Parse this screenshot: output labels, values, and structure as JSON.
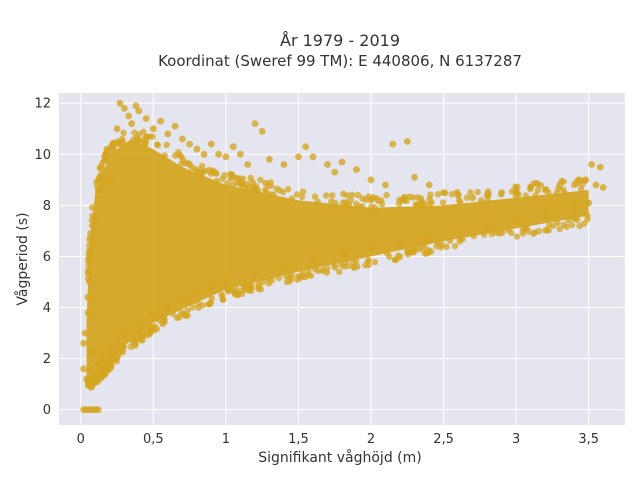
{
  "chart_data": {
    "type": "scatter",
    "title_line1": "År 1979 - 2019",
    "title_line2": "Koordinat (Sweref 99 TM): E 440806, N 6137287",
    "xlabel": "Signifikant våghöjd (m)",
    "ylabel": "Vågperiod (s)",
    "xlim": [
      -0.15,
      3.75
    ],
    "ylim": [
      -0.6,
      12.4
    ],
    "x_ticks": [
      {
        "value": 0,
        "label": "0"
      },
      {
        "value": 0.5,
        "label": "0,5"
      },
      {
        "value": 1,
        "label": "1"
      },
      {
        "value": 1.5,
        "label": "1,5"
      },
      {
        "value": 2,
        "label": "2"
      },
      {
        "value": 2.5,
        "label": "2,5"
      },
      {
        "value": 3,
        "label": "3"
      },
      {
        "value": 3.5,
        "label": "3,5"
      }
    ],
    "y_ticks": [
      {
        "value": 0,
        "label": "0"
      },
      {
        "value": 2,
        "label": "2"
      },
      {
        "value": 4,
        "label": "4"
      },
      {
        "value": 6,
        "label": "6"
      },
      {
        "value": 8,
        "label": "8"
      },
      {
        "value": 10,
        "label": "10"
      },
      {
        "value": 12,
        "label": "12"
      }
    ],
    "grid": true,
    "marker_color": "#d4a520",
    "background_color": "#e5e5ef",
    "points": [
      [
        0.02,
        0.0
      ],
      [
        0.04,
        0.0
      ],
      [
        0.06,
        0.0
      ],
      [
        0.08,
        0.0
      ],
      [
        0.1,
        0.0
      ],
      [
        0.12,
        0.0
      ],
      [
        0.02,
        2.6
      ],
      [
        0.03,
        3.0
      ],
      [
        0.02,
        1.6
      ],
      [
        0.04,
        1.2
      ],
      [
        0.05,
        3.8
      ],
      [
        0.05,
        4.4
      ],
      [
        0.06,
        5.0
      ],
      [
        0.06,
        1.5
      ],
      [
        0.07,
        6.0
      ],
      [
        0.08,
        7.2
      ],
      [
        0.08,
        2.2
      ],
      [
        0.09,
        1.1
      ],
      [
        0.1,
        1.3
      ],
      [
        0.12,
        1.8
      ],
      [
        0.15,
        2.0
      ],
      [
        0.2,
        2.3
      ],
      [
        0.25,
        2.6
      ],
      [
        0.3,
        2.9
      ],
      [
        0.4,
        3.3
      ],
      [
        0.5,
        3.7
      ],
      [
        0.6,
        4.0
      ],
      [
        0.7,
        4.3
      ],
      [
        0.8,
        4.6
      ],
      [
        0.9,
        4.8
      ],
      [
        1.0,
        5.0
      ],
      [
        1.2,
        5.3
      ],
      [
        1.4,
        5.6
      ],
      [
        1.6,
        5.9
      ],
      [
        1.8,
        6.1
      ],
      [
        2.0,
        6.3
      ],
      [
        2.2,
        6.5
      ],
      [
        2.4,
        6.7
      ],
      [
        2.6,
        6.9
      ],
      [
        2.8,
        7.2
      ],
      [
        3.0,
        7.4
      ],
      [
        3.2,
        7.6
      ],
      [
        3.4,
        7.9
      ],
      [
        3.5,
        8.1
      ],
      [
        3.55,
        8.8
      ],
      [
        3.6,
        8.7
      ],
      [
        0.1,
        7.5
      ],
      [
        0.12,
        8.6
      ],
      [
        0.15,
        9.4
      ],
      [
        0.18,
        10.2
      ],
      [
        0.2,
        9.0
      ],
      [
        0.22,
        10.4
      ],
      [
        0.25,
        11.0
      ],
      [
        0.27,
        12.0
      ],
      [
        0.3,
        11.8
      ],
      [
        0.33,
        11.5
      ],
      [
        0.35,
        11.2
      ],
      [
        0.38,
        11.9
      ],
      [
        0.4,
        11.7
      ],
      [
        0.45,
        11.4
      ],
      [
        0.5,
        11.0
      ],
      [
        0.55,
        11.3
      ],
      [
        0.6,
        10.8
      ],
      [
        0.65,
        11.1
      ],
      [
        0.7,
        10.6
      ],
      [
        0.75,
        10.4
      ],
      [
        0.8,
        10.2
      ],
      [
        0.85,
        10.0
      ],
      [
        0.9,
        10.4
      ],
      [
        0.95,
        10.0
      ],
      [
        1.0,
        9.9
      ],
      [
        1.05,
        10.3
      ],
      [
        1.1,
        10.0
      ],
      [
        1.15,
        9.6
      ],
      [
        1.2,
        11.2
      ],
      [
        1.25,
        10.9
      ],
      [
        1.3,
        9.8
      ],
      [
        1.4,
        9.6
      ],
      [
        1.5,
        9.9
      ],
      [
        1.55,
        10.3
      ],
      [
        1.6,
        9.9
      ],
      [
        1.7,
        9.6
      ],
      [
        1.75,
        9.3
      ],
      [
        1.8,
        9.7
      ],
      [
        1.9,
        9.4
      ],
      [
        2.0,
        9.0
      ],
      [
        2.1,
        8.8
      ],
      [
        2.15,
        10.4
      ],
      [
        2.25,
        10.5
      ],
      [
        2.3,
        9.1
      ],
      [
        2.4,
        8.8
      ],
      [
        2.5,
        8.5
      ],
      [
        2.6,
        8.4
      ],
      [
        2.7,
        8.3
      ],
      [
        2.8,
        8.4
      ],
      [
        2.9,
        8.5
      ],
      [
        3.0,
        8.6
      ],
      [
        3.1,
        8.7
      ],
      [
        3.2,
        8.6
      ],
      [
        3.3,
        8.8
      ],
      [
        3.4,
        8.8
      ],
      [
        3.48,
        9.0
      ],
      [
        3.52,
        9.6
      ],
      [
        3.58,
        9.5
      ]
    ]
  }
}
